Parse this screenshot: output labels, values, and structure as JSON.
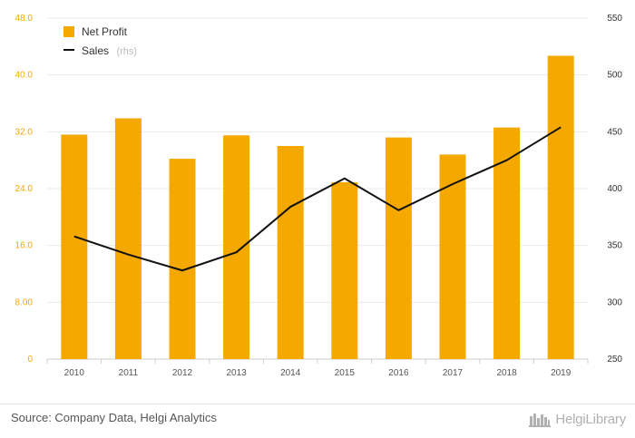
{
  "chart_data": {
    "type": "bar+line",
    "categories": [
      "2010",
      "2011",
      "2012",
      "2013",
      "2014",
      "2015",
      "2016",
      "2017",
      "2018",
      "2019"
    ],
    "series": [
      {
        "name": "Net Profit",
        "type": "bar",
        "axis": "left",
        "values": [
          31.6,
          33.9,
          28.2,
          31.5,
          30.0,
          24.9,
          31.2,
          28.8,
          32.6,
          42.7
        ]
      },
      {
        "name": "Sales",
        "name_suffix": "(rhs)",
        "type": "line",
        "axis": "right",
        "values": [
          358,
          342,
          328,
          344,
          384,
          409,
          381,
          404,
          425,
          454
        ]
      }
    ],
    "y_left": {
      "ticks": [
        "0",
        "8.00",
        "16.0",
        "24.0",
        "32.0",
        "40.0",
        "48.0"
      ],
      "ylim": [
        0,
        48
      ]
    },
    "y_right": {
      "ticks": [
        "250",
        "300",
        "350",
        "400",
        "450",
        "500",
        "550"
      ],
      "ylim": [
        250,
        550
      ]
    },
    "grid": true,
    "legend_position": "top-left"
  },
  "colors": {
    "bar": "#f5a800",
    "line": "#111111",
    "grid": "#e9e9e9"
  },
  "footer": {
    "source": "Source: Company Data, Helgi Analytics",
    "brand": "HelgiLibrary",
    "brand_icon": "library-shelf-icon"
  }
}
